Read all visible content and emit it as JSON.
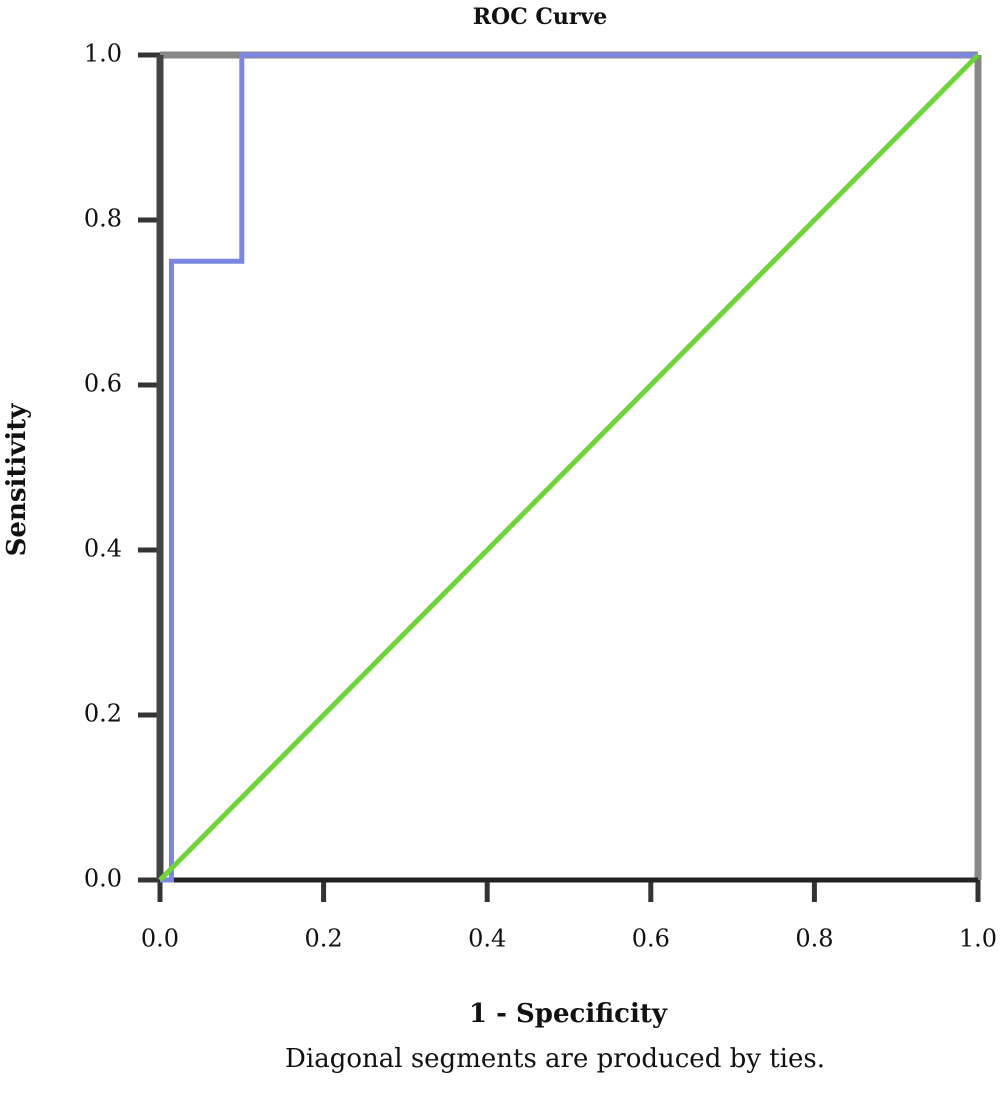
{
  "chart_data": {
    "type": "line",
    "title": "ROC Curve",
    "x_label": "1 - Specificity",
    "y_label": "Sensitivity",
    "note": "Diagonal segments are produced by ties.",
    "xlim": [
      0,
      1
    ],
    "ylim": [
      0,
      1
    ],
    "xticks": [
      {
        "value": 0,
        "label": "0.0"
      },
      0.2,
      0.4,
      0.6,
      0.8,
      {
        "value": 1,
        "label": "1.0"
      }
    ],
    "yticks": [
      {
        "value": 0,
        "label": "0.0"
      },
      0.2,
      0.4,
      0.6,
      0.8,
      {
        "value": 1,
        "label": "1.0"
      }
    ],
    "series": [
      {
        "color": "#7b86e0",
        "x": [
          0,
          0.014,
          0.014,
          0.1,
          0.1,
          1
        ],
        "values": [
          0,
          0,
          0.75,
          0.75,
          1,
          1
        ]
      },
      {
        "color": "#6fd43a",
        "x": [
          0,
          1
        ],
        "values": [
          0,
          1
        ]
      }
    ]
  }
}
